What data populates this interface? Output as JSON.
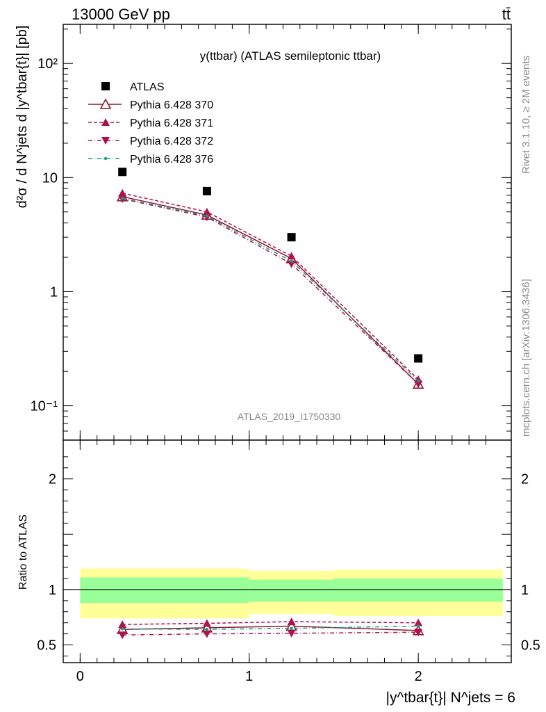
{
  "header": {
    "energy_label": "13000 GeV pp",
    "process_label": "tt̄"
  },
  "side_labels": {
    "rivet": "Rivet 3.1.10, ≥ 2M events",
    "mcplots": "mcplots.cern.ch [arXiv:1306.3436]"
  },
  "chart_data": [
    {
      "type": "scatter",
      "panel": "main",
      "title": "y(ttbar) (ATLAS semileptonic ttbar)",
      "watermark": "ATLAS_2019_I1750330",
      "ylabel": "d²σ / d N^jets d |y^tbar{t}| [pb]",
      "yscale": "log",
      "ylim": [
        0.05,
        220
      ],
      "xlim": [
        -0.1,
        2.55
      ],
      "y_tick_labels": [
        "10⁻¹",
        "1",
        "10",
        "10²"
      ],
      "y_ticks": [
        0.1,
        1,
        10,
        100
      ],
      "legend_position": "top-left",
      "series": [
        {
          "name": "ATLAS",
          "color": "#000000",
          "marker": "square",
          "line": "none",
          "x": [
            0.25,
            0.75,
            1.25,
            2.0
          ],
          "y": [
            11.2,
            7.6,
            3.0,
            0.26
          ]
        },
        {
          "name": "Pythia 6.428 370",
          "color": "#8b1a2b",
          "marker": "open-triangle-up",
          "line": "solid",
          "x": [
            0.25,
            0.75,
            1.25,
            2.0
          ],
          "y": [
            6.8,
            4.7,
            1.95,
            0.155
          ]
        },
        {
          "name": "Pythia 6.428 371",
          "color": "#b0104e",
          "marker": "triangle-up",
          "line": "dashed",
          "x": [
            0.25,
            0.75,
            1.25,
            2.0
          ],
          "y": [
            7.3,
            5.0,
            2.05,
            0.17
          ]
        },
        {
          "name": "Pythia 6.428 372",
          "color": "#b0104e",
          "marker": "triangle-down",
          "line": "dashdot",
          "x": [
            0.25,
            0.75,
            1.25,
            2.0
          ],
          "y": [
            6.5,
            4.5,
            1.75,
            0.155
          ]
        },
        {
          "name": "Pythia 6.428 376",
          "color": "#1a9a80",
          "marker": "dot",
          "line": "dashdot",
          "x": [
            0.25,
            0.75,
            1.25,
            2.0
          ],
          "y": [
            6.6,
            4.6,
            1.85,
            0.165
          ]
        }
      ]
    },
    {
      "type": "scatter",
      "panel": "ratio",
      "ylabel": "Ratio to ATLAS",
      "xlabel": "|y^tbar{t}| N^jets = 6",
      "ylim": [
        0.34,
        2.35
      ],
      "xlim": [
        -0.1,
        2.55
      ],
      "x_ticks": [
        0,
        1,
        2
      ],
      "x_tick_labels": [
        "0",
        "1",
        "2"
      ],
      "y_ticks": [
        0.5,
        1,
        2
      ],
      "y_tick_labels": [
        "0.5",
        "1",
        "2"
      ],
      "bands": {
        "bins": [
          [
            0,
            1
          ],
          [
            1,
            1.5
          ],
          [
            1.5,
            2.5
          ]
        ],
        "outer": [
          [
            0.74,
            1.19
          ],
          [
            0.78,
            1.17
          ],
          [
            0.76,
            1.18
          ]
        ],
        "inner": [
          [
            0.88,
            1.11
          ],
          [
            0.89,
            1.09
          ],
          [
            0.89,
            1.1
          ]
        ],
        "outer_color": "#ffff99",
        "inner_color": "#99ff99"
      },
      "series": [
        {
          "name": "Pythia 6.428 370",
          "color": "#8b1a2b",
          "marker": "open-triangle-up",
          "line": "solid",
          "x": [
            0.25,
            0.75,
            1.25,
            2.0
          ],
          "y": [
            0.64,
            0.655,
            0.67,
            0.63
          ]
        },
        {
          "name": "Pythia 6.428 371",
          "color": "#b0104e",
          "marker": "triangle-up",
          "line": "dashed",
          "x": [
            0.25,
            0.75,
            1.25,
            2.0
          ],
          "y": [
            0.685,
            0.695,
            0.71,
            0.7
          ]
        },
        {
          "name": "Pythia 6.428 372",
          "color": "#b0104e",
          "marker": "triangle-down",
          "line": "dashdot",
          "x": [
            0.25,
            0.75,
            1.25,
            2.0
          ],
          "y": [
            0.59,
            0.6,
            0.605,
            0.615
          ]
        },
        {
          "name": "Pythia 6.428 376",
          "color": "#1a9a80",
          "marker": "dot",
          "line": "dashdot",
          "x": [
            0.25,
            0.75,
            1.25,
            2.0
          ],
          "y": [
            0.645,
            0.64,
            0.65,
            0.67
          ]
        }
      ]
    }
  ]
}
